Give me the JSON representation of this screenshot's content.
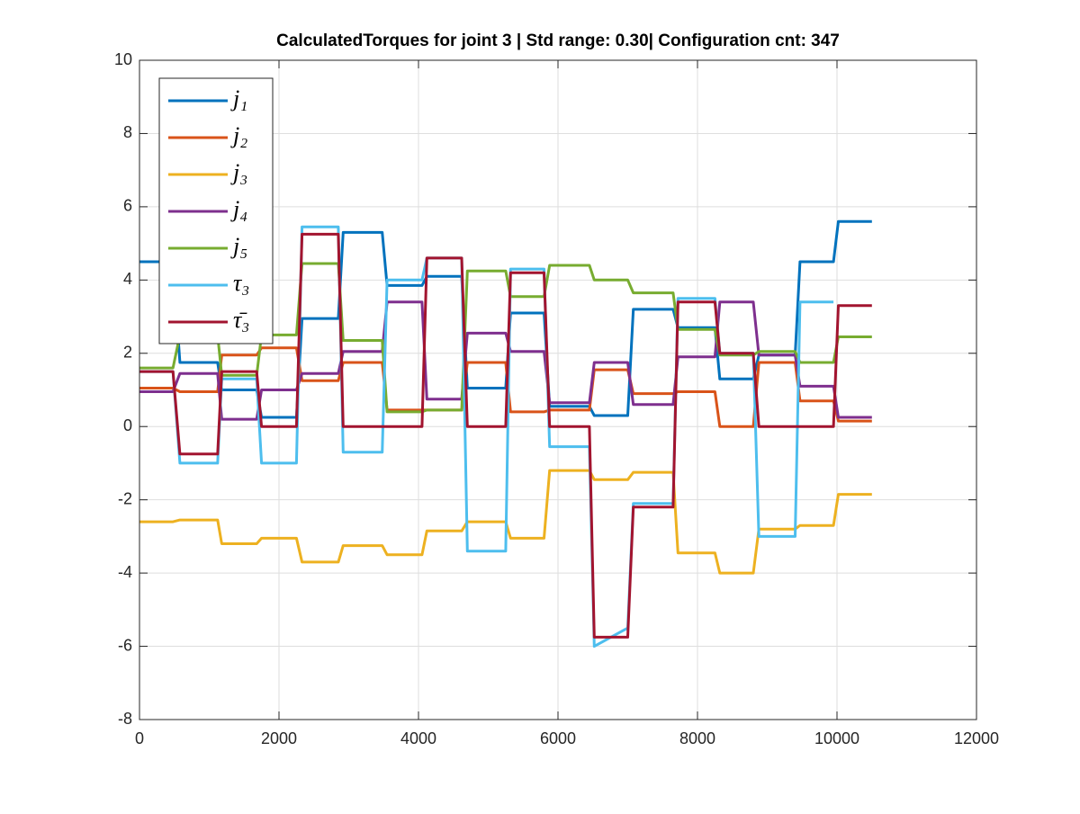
{
  "chart_data": {
    "type": "line",
    "title": "CalculatedTorques for joint 3 | Std range: 0.30| Configuration cnt: 347",
    "x": [
      0,
      480,
      580,
      1120,
      1180,
      1680,
      1750,
      2250,
      2330,
      2850,
      2920,
      3480,
      3550,
      4050,
      4120,
      4620,
      4700,
      5250,
      5320,
      5800,
      5880,
      6450,
      6520,
      7000,
      7080,
      7650,
      7720,
      8250,
      8320,
      8800,
      8880,
      9400,
      9470,
      9950,
      10020,
      10500
    ],
    "series": [
      {
        "name": "j₁",
        "color": "#0072BD",
        "values": [
          4.5,
          4.5,
          1.75,
          1.75,
          1.0,
          1.0,
          0.25,
          0.25,
          2.95,
          2.95,
          5.3,
          5.3,
          3.85,
          3.85,
          4.1,
          4.1,
          1.05,
          1.05,
          3.1,
          3.1,
          0.55,
          0.55,
          0.3,
          0.3,
          3.2,
          3.2,
          2.7,
          2.7,
          1.3,
          1.3,
          1.95,
          1.95,
          4.5,
          4.5,
          5.6,
          5.6
        ]
      },
      {
        "name": "j₂",
        "color": "#D95319",
        "values": [
          1.05,
          1.05,
          0.95,
          0.95,
          1.95,
          1.95,
          2.15,
          2.15,
          1.25,
          1.25,
          1.75,
          1.75,
          0.45,
          0.45,
          0.45,
          0.45,
          1.75,
          1.75,
          0.4,
          0.4,
          0.45,
          0.45,
          1.55,
          1.55,
          0.9,
          0.9,
          0.95,
          0.95,
          0.0,
          0.0,
          1.75,
          1.75,
          0.7,
          0.7,
          0.15,
          0.15
        ]
      },
      {
        "name": "j₃",
        "color": "#EDB120",
        "values": [
          -2.6,
          -2.6,
          -2.55,
          -2.55,
          -3.2,
          -3.2,
          -3.05,
          -3.05,
          -3.7,
          -3.7,
          -3.25,
          -3.25,
          -3.5,
          -3.5,
          -2.85,
          -2.85,
          -2.6,
          -2.6,
          -3.05,
          -3.05,
          -1.2,
          -1.2,
          -1.45,
          -1.45,
          -1.25,
          -1.25,
          -3.45,
          -3.45,
          -4.0,
          -4.0,
          -2.8,
          -2.8,
          -2.7,
          -2.7,
          -1.85,
          -1.85
        ]
      },
      {
        "name": "j₄",
        "color": "#7E2F8E",
        "values": [
          0.95,
          0.95,
          1.45,
          1.45,
          0.2,
          0.2,
          1.0,
          1.0,
          1.45,
          1.45,
          2.05,
          2.05,
          3.4,
          3.4,
          0.75,
          0.75,
          2.55,
          2.55,
          2.05,
          2.05,
          0.65,
          0.65,
          1.75,
          1.75,
          0.6,
          0.6,
          1.9,
          1.9,
          3.4,
          3.4,
          1.95,
          1.95,
          1.1,
          1.1,
          0.25,
          0.25
        ]
      },
      {
        "name": "j₅",
        "color": "#77AC30",
        "values": [
          1.6,
          1.6,
          2.5,
          2.5,
          1.4,
          1.4,
          2.5,
          2.5,
          4.45,
          4.45,
          2.35,
          2.35,
          0.4,
          0.4,
          0.45,
          0.45,
          4.25,
          4.25,
          3.55,
          3.55,
          4.4,
          4.4,
          4.0,
          4.0,
          3.65,
          3.65,
          2.65,
          2.65,
          1.95,
          1.95,
          2.05,
          2.05,
          1.75,
          1.75,
          2.45,
          2.45
        ]
      },
      {
        "name": "τ₃",
        "color": "#4DBEEE",
        "values": [
          1.5,
          1.5,
          -1.0,
          -1.0,
          1.3,
          1.3,
          -1.0,
          -1.0,
          5.45,
          5.45,
          -0.7,
          -0.7,
          4.0,
          4.0,
          4.6,
          4.6,
          -3.4,
          -3.4,
          4.3,
          4.3,
          -0.55,
          -0.55,
          -6.0,
          -5.5,
          -2.1,
          -2.1,
          3.5,
          3.5,
          2.0,
          2.0,
          -3.0,
          -3.0,
          3.4,
          3.4,
          null,
          null
        ]
      },
      {
        "name": "τ̄₃",
        "color": "#A2142F",
        "values": [
          1.5,
          1.5,
          -0.75,
          -0.75,
          1.5,
          1.5,
          0.0,
          0.0,
          5.25,
          5.25,
          0.0,
          0.0,
          0.0,
          0.0,
          4.6,
          4.6,
          0.0,
          0.0,
          4.2,
          4.2,
          0.0,
          0.0,
          -5.75,
          -5.75,
          -2.2,
          -2.2,
          3.4,
          3.4,
          2.0,
          2.0,
          0.0,
          0.0,
          0.0,
          0.0,
          3.3,
          3.3
        ]
      }
    ],
    "xlim": [
      0,
      12000
    ],
    "xticks": [
      0,
      2000,
      4000,
      6000,
      8000,
      10000,
      12000
    ],
    "ylim": [
      -8,
      10
    ],
    "yticks": [
      -8,
      -6,
      -4,
      -2,
      0,
      2,
      4,
      6,
      8,
      10
    ],
    "grid": true,
    "legend": "northwest"
  }
}
